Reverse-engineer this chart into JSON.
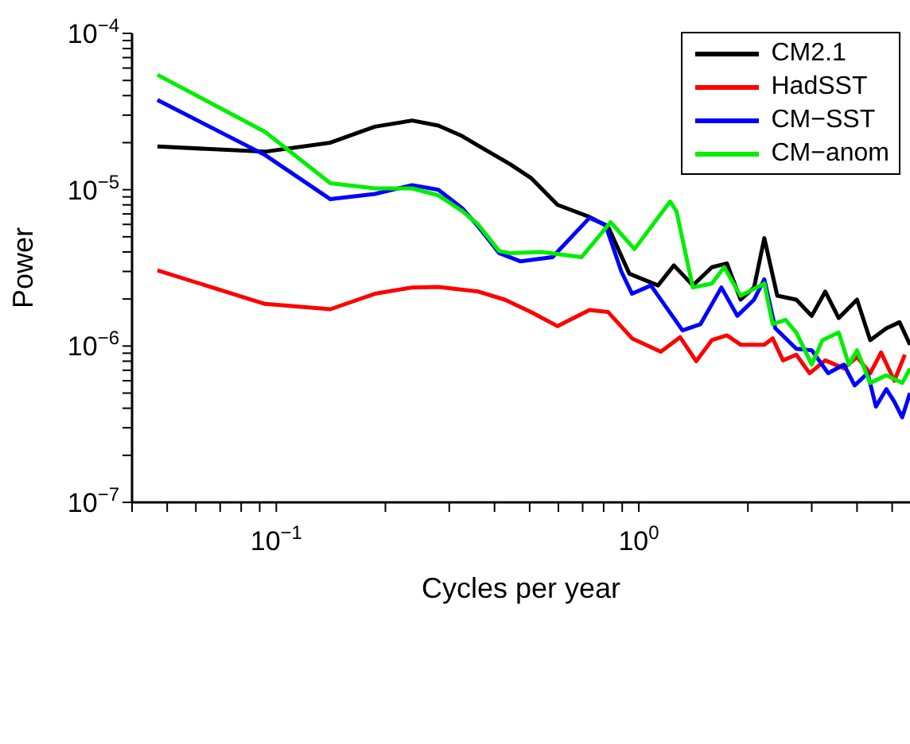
{
  "chart_data": {
    "type": "line",
    "xlabel": "Cycles per year",
    "ylabel": "Power",
    "log": "xy",
    "legend": "top right",
    "marker": "none",
    "line_style": "solid",
    "xlim": [
      0.04,
      5.6
    ],
    "ylim": [
      1e-07,
      0.0001
    ],
    "xticks": [
      {
        "value": 0.04,
        "label": null
      },
      {
        "value": 0.05,
        "label": null
      },
      {
        "value": 0.06,
        "label": null
      },
      {
        "value": 0.07,
        "label": null
      },
      {
        "value": 0.08,
        "label": null
      },
      {
        "value": 0.09,
        "label": null
      },
      {
        "value": 0.1,
        "label": "10$^{−1}$"
      },
      {
        "value": 0.2,
        "label": null
      },
      {
        "value": 0.3,
        "label": null
      },
      {
        "value": 0.4,
        "label": null
      },
      {
        "value": 0.5,
        "label": null
      },
      {
        "value": 0.6,
        "label": null
      },
      {
        "value": 0.7,
        "label": null
      },
      {
        "value": 0.8,
        "label": null
      },
      {
        "value": 0.9,
        "label": null
      },
      {
        "value": 1,
        "label": "10$^{0}$"
      },
      {
        "value": 2,
        "label": null
      },
      {
        "value": 3,
        "label": null
      },
      {
        "value": 4,
        "label": null
      },
      {
        "value": 5,
        "label": null
      }
    ],
    "yticks": [
      {
        "value": 1e-07,
        "label": "10$^{−7}$"
      },
      {
        "value": 2e-07,
        "label": null
      },
      {
        "value": 3e-07,
        "label": null
      },
      {
        "value": 4e-07,
        "label": null
      },
      {
        "value": 5e-07,
        "label": null
      },
      {
        "value": 6e-07,
        "label": null
      },
      {
        "value": 7e-07,
        "label": null
      },
      {
        "value": 8e-07,
        "label": null
      },
      {
        "value": 9e-07,
        "label": null
      },
      {
        "value": 1e-06,
        "label": "10$^{−6}$"
      },
      {
        "value": 2e-06,
        "label": null
      },
      {
        "value": 3e-06,
        "label": null
      },
      {
        "value": 4e-06,
        "label": null
      },
      {
        "value": 5e-06,
        "label": null
      },
      {
        "value": 6e-06,
        "label": null
      },
      {
        "value": 7e-06,
        "label": null
      },
      {
        "value": 8e-06,
        "label": null
      },
      {
        "value": 9e-06,
        "label": null
      },
      {
        "value": 1e-05,
        "label": "10$^{−5}$"
      },
      {
        "value": 2e-05,
        "label": null
      },
      {
        "value": 3e-05,
        "label": null
      },
      {
        "value": 4e-05,
        "label": null
      },
      {
        "value": 5e-05,
        "label": null
      },
      {
        "value": 6e-05,
        "label": null
      },
      {
        "value": 7e-05,
        "label": null
      },
      {
        "value": 8e-05,
        "label": null
      },
      {
        "value": 9e-05,
        "label": null
      },
      {
        "value": 0.0001,
        "label": "10$^{−4}$"
      }
    ],
    "series": [
      {
        "name": "CM2.1",
        "color": "#000000",
        "x": [
          0.047,
          0.093,
          0.141,
          0.187,
          0.237,
          0.28,
          0.326,
          0.361,
          0.441,
          0.504,
          0.597,
          0.731,
          0.823,
          0.942,
          1.13,
          1.25,
          1.41,
          1.59,
          1.75,
          1.91,
          2.08,
          2.22,
          2.41,
          2.72,
          3.0,
          3.27,
          3.56,
          4.0,
          4.35,
          4.82,
          5.24,
          5.6
        ],
        "values": [
          1.89e-05,
          1.75e-05,
          2e-05,
          2.53e-05,
          2.77e-05,
          2.57e-05,
          2.2e-05,
          1.91e-05,
          1.46e-05,
          1.19e-05,
          8e-06,
          6.7e-06,
          5.8e-06,
          2.9e-06,
          2.44e-06,
          3.28e-06,
          2.44e-06,
          3.19e-06,
          3.38e-06,
          1.98e-06,
          2.37e-06,
          4.9e-06,
          2.1e-06,
          1.98e-06,
          1.56e-06,
          2.23e-06,
          1.51e-06,
          1.98e-06,
          1.09e-06,
          1.3e-06,
          1.42e-06,
          1.02e-06
        ]
      },
      {
        "name": "HadSST",
        "color": "#ff0000",
        "x": [
          0.047,
          0.093,
          0.141,
          0.187,
          0.237,
          0.28,
          0.326,
          0.361,
          0.427,
          0.504,
          0.597,
          0.731,
          0.823,
          0.958,
          1.15,
          1.3,
          1.44,
          1.59,
          1.75,
          1.91,
          2.22,
          2.34,
          2.5,
          2.72,
          2.96,
          3.27,
          3.68,
          4.0,
          4.35,
          4.66,
          5.07,
          5.42
        ],
        "values": [
          3.05e-06,
          1.86e-06,
          1.72e-06,
          2.16e-06,
          2.37e-06,
          2.39e-06,
          2.29e-06,
          2.23e-06,
          1.98e-06,
          1.65e-06,
          1.34e-06,
          1.7e-06,
          1.65e-06,
          1.12e-06,
          9.2e-07,
          1.14e-06,
          8e-07,
          1.09e-06,
          1.17e-06,
          1.02e-06,
          1.02e-06,
          1.12e-06,
          8.1e-07,
          8.8e-07,
          6.7e-07,
          8.1e-07,
          7.2e-07,
          8.5e-07,
          6.7e-07,
          9.1e-07,
          6e-07,
          8.8e-07
        ]
      },
      {
        "name": "CM−SST",
        "color": "#0000ff",
        "x": [
          0.047,
          0.093,
          0.141,
          0.187,
          0.237,
          0.28,
          0.326,
          0.361,
          0.412,
          0.472,
          0.578,
          0.731,
          0.809,
          0.895,
          0.958,
          1.08,
          1.32,
          1.48,
          1.69,
          1.87,
          2.08,
          2.22,
          2.38,
          2.72,
          3.0,
          3.33,
          3.68,
          3.94,
          4.28,
          4.51,
          4.82,
          5.07,
          5.33,
          5.6
        ],
        "values": [
          3.75e-05,
          1.67e-05,
          8.7e-06,
          9.4e-06,
          1.07e-05,
          1e-05,
          7.6e-06,
          5.8e-06,
          3.93e-06,
          3.48e-06,
          3.7e-06,
          6.6e-06,
          5.97e-06,
          3e-06,
          2.16e-06,
          2.44e-06,
          1.26e-06,
          1.38e-06,
          2.37e-06,
          1.56e-06,
          1.98e-06,
          2.67e-06,
          1.3e-06,
          9.6e-07,
          9.4e-07,
          6.7e-07,
          7.6e-07,
          5.6e-07,
          6.7e-07,
          4.1e-07,
          5.3e-07,
          4.4e-07,
          3.5e-07,
          5e-07
        ]
      },
      {
        "name": "CM−anom",
        "color": "#00ee00",
        "x": [
          0.047,
          0.093,
          0.141,
          0.187,
          0.237,
          0.28,
          0.326,
          0.361,
          0.412,
          0.441,
          0.539,
          0.695,
          0.836,
          0.973,
          1.22,
          1.27,
          1.41,
          1.59,
          1.72,
          1.91,
          2.22,
          2.34,
          2.54,
          2.72,
          3.0,
          3.21,
          3.56,
          3.8,
          4.0,
          4.35,
          4.82,
          5.33,
          5.6
        ],
        "values": [
          5.43e-05,
          2.35e-05,
          1.1e-05,
          1.02e-05,
          1.02e-05,
          9.2e-06,
          7.3e-06,
          5.97e-06,
          4.05e-06,
          3.93e-06,
          4e-06,
          3.7e-06,
          6.2e-06,
          4.17e-06,
          8.4e-06,
          7.3e-06,
          2.37e-06,
          2.51e-06,
          3.19e-06,
          2.1e-06,
          2.51e-06,
          1.38e-06,
          1.47e-06,
          1.22e-06,
          7.6e-07,
          1.09e-06,
          1.22e-06,
          7.6e-07,
          9.4e-07,
          5.8e-07,
          6.5e-07,
          5.8e-07,
          7.2e-07
        ]
      }
    ]
  }
}
